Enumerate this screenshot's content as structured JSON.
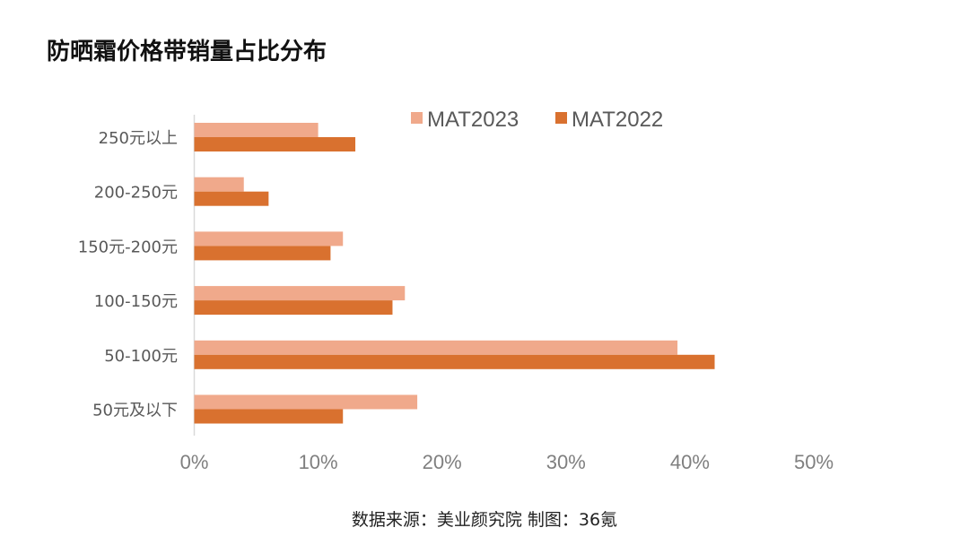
{
  "chart_data": {
    "type": "bar",
    "orientation": "horizontal",
    "title": "防晒霜价格带销量占比分布",
    "categories": [
      "250元以上",
      "200-250元",
      "150元-200元",
      "100-150元",
      "50-100元",
      "50元及以下"
    ],
    "series": [
      {
        "name": "MAT2023",
        "color": "#f0a98b",
        "values": [
          10,
          4,
          12,
          17,
          39,
          18
        ]
      },
      {
        "name": "MAT2022",
        "color": "#d9712f",
        "values": [
          13,
          6,
          11,
          16,
          42,
          12
        ]
      }
    ],
    "xlim": [
      0,
      50
    ],
    "xticks": [
      "0%",
      "10%",
      "20%",
      "30%",
      "40%",
      "50%"
    ],
    "xlabel": "",
    "ylabel": "",
    "legend": "top",
    "grid": false,
    "source": "数据来源：美业颜究院 制图：36氪"
  }
}
